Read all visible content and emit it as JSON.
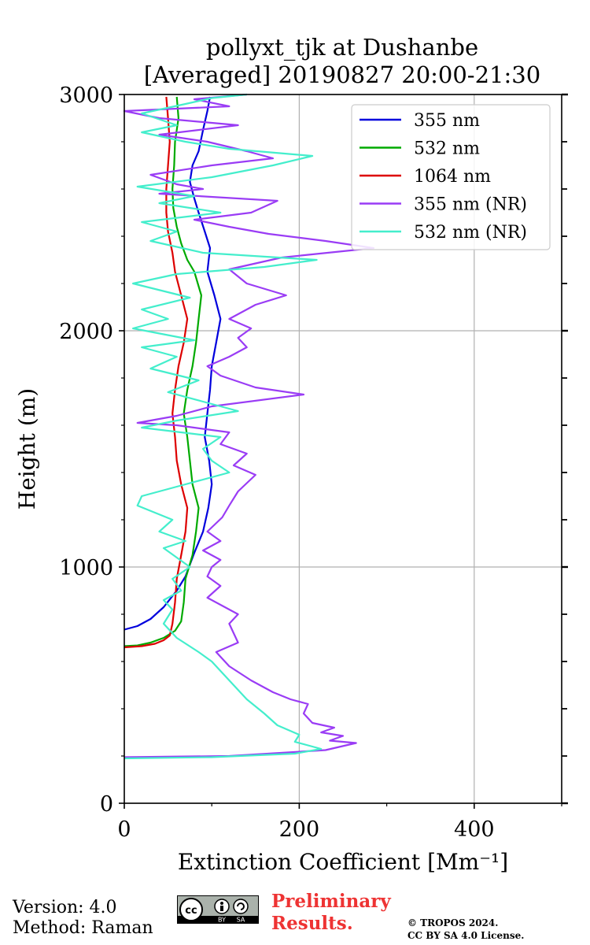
{
  "chart_data": {
    "type": "line",
    "title": [
      "pollyxt_tjk at Dushanbe",
      "[Averaged] 20190827 20:00-21:30"
    ],
    "xlabel": "Extinction Coefficient [Mm⁻¹]",
    "ylabel": "Height (m)",
    "xlim": [
      0,
      500
    ],
    "ylim": [
      0,
      3000
    ],
    "xticks": [
      0,
      200,
      400
    ],
    "yticks": [
      0,
      1000,
      2000,
      3000
    ],
    "grid": true,
    "legend": "top-right",
    "series": [
      {
        "name": "355 nm",
        "color": "#0000dd",
        "points": [
          [
            0,
            735
          ],
          [
            15,
            750
          ],
          [
            30,
            780
          ],
          [
            45,
            830
          ],
          [
            60,
            900
          ],
          [
            70,
            960
          ],
          [
            80,
            1060
          ],
          [
            90,
            1150
          ],
          [
            96,
            1250
          ],
          [
            100,
            1350
          ],
          [
            97,
            1450
          ],
          [
            92,
            1550
          ],
          [
            95,
            1650
          ],
          [
            98,
            1750
          ],
          [
            100,
            1850
          ],
          [
            105,
            1950
          ],
          [
            110,
            2050
          ],
          [
            103,
            2150
          ],
          [
            95,
            2250
          ],
          [
            98,
            2350
          ],
          [
            92,
            2420
          ],
          [
            85,
            2500
          ],
          [
            80,
            2560
          ],
          [
            75,
            2630
          ],
          [
            78,
            2700
          ],
          [
            85,
            2760
          ],
          [
            90,
            2850
          ],
          [
            95,
            2930
          ],
          [
            98,
            2990
          ]
        ]
      },
      {
        "name": "532 nm",
        "color": "#00aa00",
        "points": [
          [
            0,
            665
          ],
          [
            15,
            668
          ],
          [
            30,
            680
          ],
          [
            45,
            700
          ],
          [
            58,
            730
          ],
          [
            65,
            770
          ],
          [
            68,
            850
          ],
          [
            70,
            950
          ],
          [
            78,
            1050
          ],
          [
            82,
            1150
          ],
          [
            85,
            1250
          ],
          [
            78,
            1350
          ],
          [
            75,
            1450
          ],
          [
            72,
            1550
          ],
          [
            68,
            1650
          ],
          [
            72,
            1750
          ],
          [
            78,
            1850
          ],
          [
            82,
            1950
          ],
          [
            85,
            2050
          ],
          [
            88,
            2150
          ],
          [
            80,
            2250
          ],
          [
            72,
            2300
          ],
          [
            65,
            2370
          ],
          [
            60,
            2440
          ],
          [
            56,
            2520
          ],
          [
            55,
            2600
          ],
          [
            57,
            2700
          ],
          [
            58,
            2800
          ],
          [
            62,
            2900
          ],
          [
            60,
            2990
          ]
        ]
      },
      {
        "name": "1064 nm",
        "color": "#dd0000",
        "points": [
          [
            0,
            660
          ],
          [
            20,
            665
          ],
          [
            35,
            675
          ],
          [
            45,
            690
          ],
          [
            52,
            710
          ],
          [
            55,
            760
          ],
          [
            58,
            850
          ],
          [
            60,
            950
          ],
          [
            65,
            1050
          ],
          [
            70,
            1150
          ],
          [
            72,
            1250
          ],
          [
            65,
            1350
          ],
          [
            60,
            1450
          ],
          [
            58,
            1550
          ],
          [
            55,
            1650
          ],
          [
            58,
            1750
          ],
          [
            62,
            1850
          ],
          [
            68,
            1950
          ],
          [
            72,
            2050
          ],
          [
            65,
            2150
          ],
          [
            58,
            2250
          ],
          [
            55,
            2330
          ],
          [
            50,
            2420
          ],
          [
            48,
            2500
          ],
          [
            48,
            2600
          ],
          [
            50,
            2700
          ],
          [
            52,
            2800
          ],
          [
            50,
            2900
          ],
          [
            48,
            2990
          ]
        ]
      },
      {
        "name": "355 nm (NR)",
        "color": "#9a3cf5",
        "points": [
          [
            0,
            195
          ],
          [
            120,
            200
          ],
          [
            230,
            225
          ],
          [
            265,
            255
          ],
          [
            235,
            265
          ],
          [
            250,
            285
          ],
          [
            225,
            300
          ],
          [
            240,
            320
          ],
          [
            215,
            340
          ],
          [
            205,
            380
          ],
          [
            210,
            420
          ],
          [
            190,
            440
          ],
          [
            170,
            470
          ],
          [
            145,
            520
          ],
          [
            120,
            580
          ],
          [
            105,
            640
          ],
          [
            130,
            680
          ],
          [
            125,
            720
          ],
          [
            120,
            760
          ],
          [
            130,
            800
          ],
          [
            95,
            870
          ],
          [
            110,
            920
          ],
          [
            95,
            960
          ],
          [
            100,
            1000
          ],
          [
            110,
            1030
          ],
          [
            90,
            1070
          ],
          [
            110,
            1110
          ],
          [
            95,
            1150
          ],
          [
            112,
            1210
          ],
          [
            120,
            1260
          ],
          [
            130,
            1320
          ],
          [
            150,
            1390
          ],
          [
            125,
            1430
          ],
          [
            140,
            1480
          ],
          [
            110,
            1520
          ],
          [
            120,
            1570
          ],
          [
            60,
            1600
          ],
          [
            15,
            1610
          ],
          [
            60,
            1640
          ],
          [
            100,
            1680
          ],
          [
            205,
            1730
          ],
          [
            150,
            1760
          ],
          [
            110,
            1810
          ],
          [
            95,
            1850
          ],
          [
            120,
            1890
          ],
          [
            140,
            1930
          ],
          [
            130,
            1970
          ],
          [
            145,
            2010
          ],
          [
            120,
            2050
          ],
          [
            150,
            2110
          ],
          [
            185,
            2150
          ],
          [
            140,
            2200
          ],
          [
            120,
            2260
          ],
          [
            180,
            2310
          ],
          [
            285,
            2350
          ],
          [
            230,
            2380
          ],
          [
            165,
            2410
          ],
          [
            120,
            2440
          ],
          [
            80,
            2470
          ],
          [
            145,
            2500
          ],
          [
            175,
            2550
          ],
          [
            40,
            2580
          ],
          [
            90,
            2600
          ],
          [
            60,
            2620
          ],
          [
            30,
            2660
          ],
          [
            100,
            2700
          ],
          [
            170,
            2730
          ],
          [
            140,
            2760
          ],
          [
            95,
            2800
          ],
          [
            40,
            2830
          ],
          [
            130,
            2870
          ],
          [
            40,
            2900
          ],
          [
            0,
            2930
          ],
          [
            120,
            2950
          ],
          [
            80,
            2980
          ],
          [
            140,
            3000
          ]
        ]
      },
      {
        "name": "532 nm (NR)",
        "color": "#44eecc",
        "points": [
          [
            0,
            190
          ],
          [
            100,
            195
          ],
          [
            195,
            210
          ],
          [
            225,
            230
          ],
          [
            195,
            260
          ],
          [
            200,
            290
          ],
          [
            175,
            330
          ],
          [
            160,
            380
          ],
          [
            140,
            440
          ],
          [
            125,
            500
          ],
          [
            110,
            560
          ],
          [
            100,
            600
          ],
          [
            85,
            640
          ],
          [
            60,
            700
          ],
          [
            45,
            760
          ],
          [
            55,
            820
          ],
          [
            45,
            860
          ],
          [
            65,
            900
          ],
          [
            55,
            950
          ],
          [
            75,
            1000
          ],
          [
            60,
            1040
          ],
          [
            45,
            1080
          ],
          [
            70,
            1110
          ],
          [
            40,
            1150
          ],
          [
            55,
            1200
          ],
          [
            15,
            1260
          ],
          [
            20,
            1300
          ],
          [
            70,
            1350
          ],
          [
            120,
            1400
          ],
          [
            100,
            1450
          ],
          [
            90,
            1500
          ],
          [
            110,
            1550
          ],
          [
            20,
            1590
          ],
          [
            60,
            1620
          ],
          [
            130,
            1660
          ],
          [
            90,
            1700
          ],
          [
            50,
            1740
          ],
          [
            85,
            1790
          ],
          [
            30,
            1840
          ],
          [
            60,
            1890
          ],
          [
            20,
            1930
          ],
          [
            80,
            1960
          ],
          [
            10,
            2010
          ],
          [
            50,
            2050
          ],
          [
            20,
            2090
          ],
          [
            75,
            2140
          ],
          [
            10,
            2200
          ],
          [
            60,
            2240
          ],
          [
            160,
            2270
          ],
          [
            220,
            2300
          ],
          [
            90,
            2330
          ],
          [
            30,
            2380
          ],
          [
            60,
            2420
          ],
          [
            20,
            2460
          ],
          [
            110,
            2500
          ],
          [
            40,
            2540
          ],
          [
            80,
            2570
          ],
          [
            15,
            2610
          ],
          [
            100,
            2650
          ],
          [
            170,
            2700
          ],
          [
            215,
            2740
          ],
          [
            120,
            2770
          ],
          [
            70,
            2800
          ],
          [
            20,
            2840
          ],
          [
            60,
            2870
          ],
          [
            20,
            2920
          ],
          [
            70,
            2960
          ],
          [
            100,
            2985
          ],
          [
            140,
            3000
          ]
        ]
      }
    ]
  },
  "footer": {
    "version": "Version: 4.0",
    "method": "Method: Raman",
    "preliminary": [
      "Preliminary",
      "Results."
    ],
    "preliminary_color": "#ee3333",
    "copyright": [
      "© TROPOS 2024.",
      "CC BY SA 4.0 License."
    ],
    "license_badge": {
      "text": "cc",
      "by": "BY",
      "sa": "SA"
    }
  }
}
